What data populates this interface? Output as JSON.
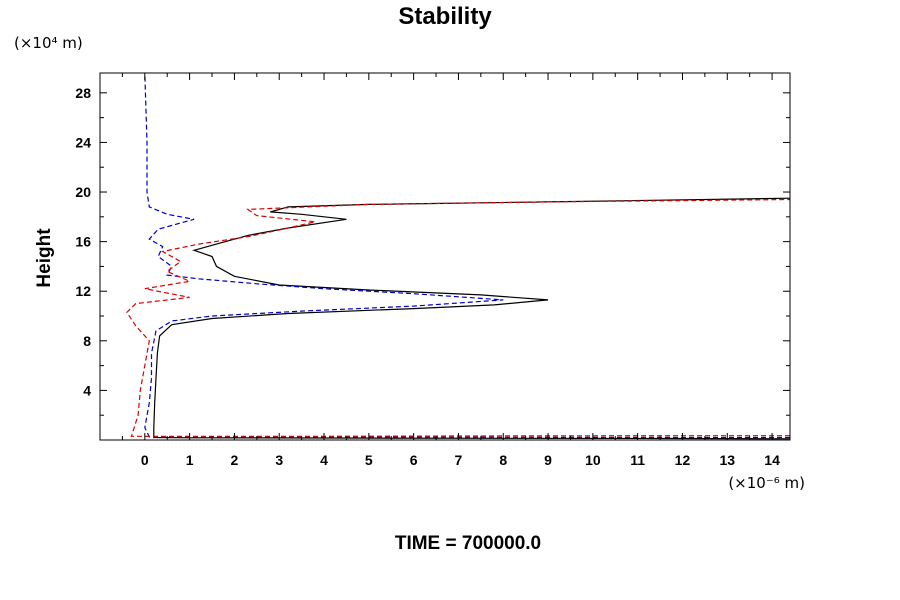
{
  "chart_data": {
    "type": "line",
    "title": "Stability",
    "ylabel": "Height",
    "xlabel": "",
    "y_unit": "(×10⁴ m)",
    "x_unit": "(×10⁻⁶ m)",
    "footer": "TIME = 700000.0",
    "xlim": [
      -1,
      14.4
    ],
    "ylim": [
      0,
      29.6
    ],
    "x_ticks": [
      0,
      1,
      2,
      3,
      4,
      5,
      6,
      7,
      8,
      9,
      10,
      11,
      12,
      13,
      14
    ],
    "x_tick_labels": [
      "0",
      "1",
      "2",
      "3",
      "4",
      "5",
      "6",
      "7",
      "8",
      "9",
      "10",
      "11",
      "12",
      "13",
      "14"
    ],
    "y_ticks": [
      4,
      8,
      12,
      16,
      20,
      24,
      28
    ],
    "y_tick_labels": [
      "4",
      "8",
      "12",
      "16",
      "20",
      "24",
      "28"
    ],
    "grid": false,
    "series": [
      {
        "color": "#000000",
        "dash": "solid",
        "points": [
          [
            14.4,
            0.1
          ],
          [
            12,
            0.12
          ],
          [
            8,
            0.14
          ],
          [
            4,
            0.16
          ],
          [
            1,
            0.18
          ],
          [
            0.2,
            0.2
          ],
          [
            0.2,
            1
          ],
          [
            0.22,
            3
          ],
          [
            0.25,
            5
          ],
          [
            0.28,
            7
          ],
          [
            0.33,
            8.4
          ],
          [
            0.6,
            9.3
          ],
          [
            1.5,
            9.8
          ],
          [
            3.2,
            10.2
          ],
          [
            6,
            10.6
          ],
          [
            7.8,
            10.9
          ],
          [
            9,
            11.3
          ],
          [
            7.5,
            11.7
          ],
          [
            5,
            12.1
          ],
          [
            3,
            12.5
          ],
          [
            2,
            13.2
          ],
          [
            1.6,
            14
          ],
          [
            1.5,
            14.8
          ],
          [
            1.1,
            15.3
          ],
          [
            1.6,
            15.8
          ],
          [
            2.3,
            16.5
          ],
          [
            3.2,
            17.1
          ],
          [
            4.5,
            17.8
          ],
          [
            3.5,
            18.2
          ],
          [
            2.8,
            18.4
          ],
          [
            3.2,
            18.8
          ],
          [
            5,
            19
          ],
          [
            9,
            19.2
          ],
          [
            14.4,
            19.5
          ]
        ]
      },
      {
        "color": "#0000cc",
        "dash": "dashed",
        "points": [
          [
            14.4,
            0.2
          ],
          [
            12,
            0.2
          ],
          [
            8,
            0.22
          ],
          [
            4,
            0.24
          ],
          [
            1,
            0.25
          ],
          [
            0.1,
            0.25
          ],
          [
            0,
            1
          ],
          [
            0.1,
            3
          ],
          [
            0.15,
            5
          ],
          [
            0.15,
            7
          ],
          [
            0.25,
            8.8
          ],
          [
            0.6,
            9.6
          ],
          [
            1.5,
            10
          ],
          [
            3.5,
            10.4
          ],
          [
            6,
            10.8
          ],
          [
            8,
            11.3
          ],
          [
            6,
            11.8
          ],
          [
            4,
            12.2
          ],
          [
            2.5,
            12.6
          ],
          [
            1.2,
            13
          ],
          [
            0.5,
            13.3
          ],
          [
            0.6,
            14
          ],
          [
            0.3,
            14.8
          ],
          [
            0.4,
            15.6
          ],
          [
            0.1,
            16.2
          ],
          [
            0.3,
            17
          ],
          [
            1.1,
            17.8
          ],
          [
            0.5,
            18.2
          ],
          [
            0.1,
            18.8
          ],
          [
            0.05,
            20
          ],
          [
            0.05,
            24
          ],
          [
            0,
            29.6
          ]
        ]
      },
      {
        "color": "#dd0000",
        "dash": "dashed",
        "points": [
          [
            14.4,
            0.35
          ],
          [
            12,
            0.35
          ],
          [
            8,
            0.33
          ],
          [
            4,
            0.3
          ],
          [
            1,
            0.3
          ],
          [
            -0.3,
            0.3
          ],
          [
            -0.15,
            2
          ],
          [
            -0.1,
            4
          ],
          [
            0,
            6
          ],
          [
            0.1,
            8
          ],
          [
            -0.2,
            9.2
          ],
          [
            -0.4,
            10.3
          ],
          [
            -0.2,
            11
          ],
          [
            1,
            11.5
          ],
          [
            0,
            12.2
          ],
          [
            1,
            12.8
          ],
          [
            0.5,
            13.6
          ],
          [
            0.8,
            14.4
          ],
          [
            0.4,
            15.2
          ],
          [
            1.2,
            15.8
          ],
          [
            2.3,
            16.4
          ],
          [
            3.2,
            17.1
          ],
          [
            3.8,
            17.6
          ],
          [
            2.5,
            18.1
          ],
          [
            2.3,
            18.6
          ],
          [
            5,
            19
          ],
          [
            9,
            19.2
          ],
          [
            14.4,
            19.4
          ]
        ]
      }
    ]
  }
}
